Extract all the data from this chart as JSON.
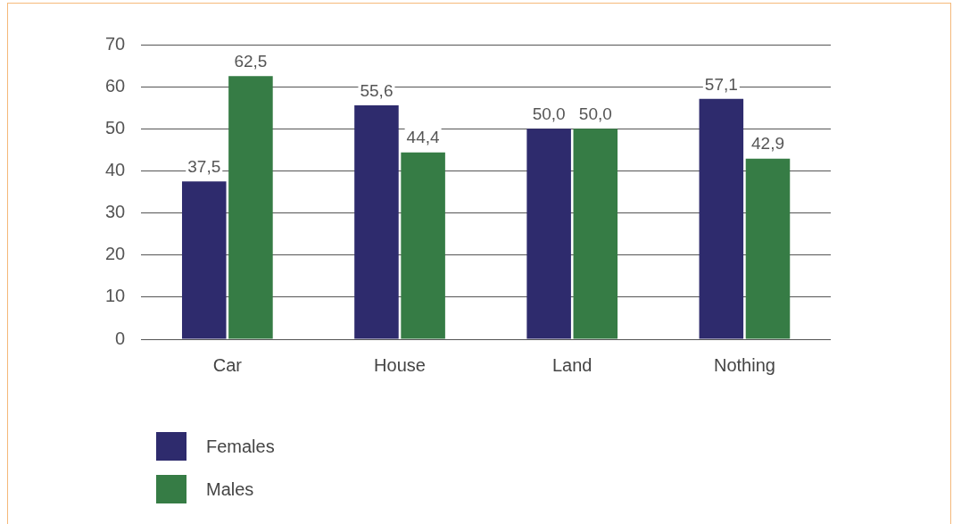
{
  "chart_data": {
    "type": "bar",
    "categories": [
      "Car",
      "House",
      "Land",
      "Nothing"
    ],
    "series": [
      {
        "name": "Females",
        "color": "#2e2b6d",
        "values": [
          37.5,
          55.6,
          50.0,
          57.1
        ],
        "value_labels": [
          "37,5",
          "55,6",
          "50,0",
          "57,1"
        ]
      },
      {
        "name": "Males",
        "color": "#367c45",
        "values": [
          62.5,
          44.4,
          50.0,
          42.9
        ],
        "value_labels": [
          "62,5",
          "44,4",
          "50,0",
          "42,9"
        ]
      }
    ],
    "ylim": [
      0,
      70
    ],
    "yticks": [
      0,
      10,
      20,
      30,
      40,
      50,
      60,
      70
    ],
    "grid": "y",
    "legend": "bottom left"
  }
}
